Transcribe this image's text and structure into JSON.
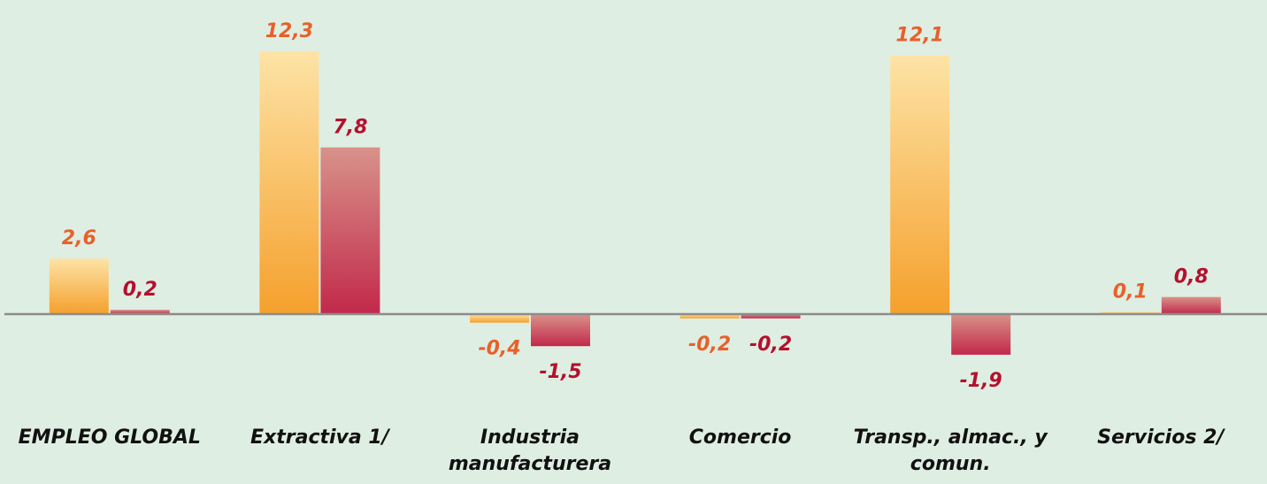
{
  "chart_data": {
    "type": "bar",
    "categories": [
      "EMPLEO GLOBAL",
      "Extractiva 1/",
      "Industria manufacturera",
      "Comercio",
      "Transp., almac., y comun.",
      "Servicios 2/"
    ],
    "series": [
      {
        "color": "#f5a02c",
        "values": [
          2.6,
          12.3,
          -0.4,
          -0.2,
          12.1,
          0.1
        ],
        "value_labels": [
          "2,6",
          "12,3",
          "-0,4",
          "-0,2",
          "12,1",
          "0,1"
        ],
        "label_color": "#e8602a"
      },
      {
        "color": "#c2294a",
        "values": [
          0.2,
          7.8,
          -1.5,
          -0.2,
          -1.9,
          0.8
        ],
        "value_labels": [
          "0,2",
          "7,8",
          "-1,5",
          "-0,2",
          "-1,9",
          "0,8"
        ],
        "label_color": "#b4102e"
      }
    ],
    "ylim": [
      -4,
      13
    ]
  }
}
